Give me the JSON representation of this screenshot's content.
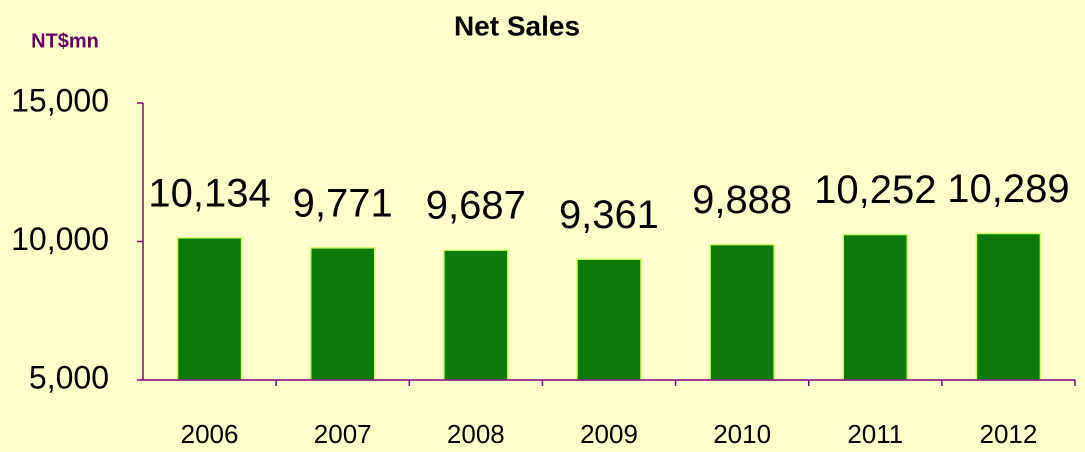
{
  "chart_data": {
    "type": "bar",
    "title": "Net Sales",
    "y_label": "NT$mn",
    "categories": [
      "2006",
      "2007",
      "2008",
      "2009",
      "2010",
      "2011",
      "2012"
    ],
    "values": [
      10134,
      9771,
      9687,
      9361,
      9888,
      10252,
      10289
    ],
    "value_labels": [
      "10,134",
      "9,771",
      "9,687",
      "9,361",
      "9,888",
      "10,252",
      "10,289"
    ],
    "color": "#0b7a0b",
    "ylim": [
      5000,
      15000
    ],
    "yticks": [
      {
        "value": 5000,
        "label": "5,000"
      },
      {
        "value": 10000,
        "label": "10,000"
      },
      {
        "value": 15000,
        "label": "15,000"
      }
    ]
  }
}
